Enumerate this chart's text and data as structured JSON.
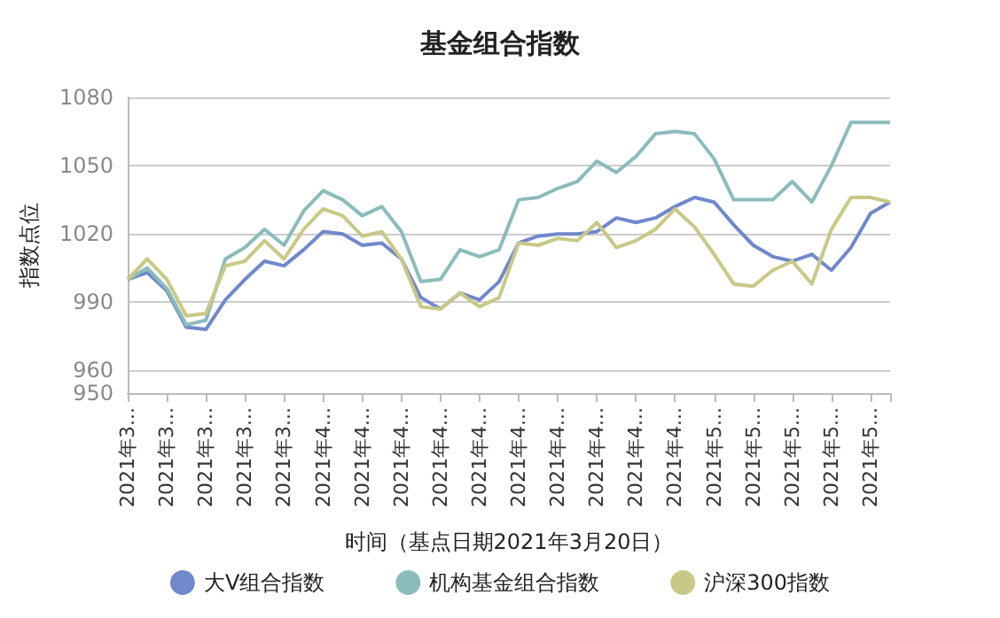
{
  "chart_data": {
    "type": "line",
    "title": "基金组合指数",
    "xlabel": "时间（基点日期2021年3月20日）",
    "ylabel": "指数点位",
    "categories": [
      "2021年3...",
      null,
      "2021年3...",
      null,
      "2021年3...",
      null,
      "2021年3...",
      null,
      "2021年3...",
      null,
      "2021年4...",
      null,
      "2021年4...",
      null,
      "2021年4...",
      null,
      "2021年4...",
      null,
      "2021年4...",
      null,
      "2021年4...",
      null,
      "2021年4...",
      null,
      "2021年4...",
      null,
      "2021年4...",
      null,
      "2021年4...",
      null,
      "2021年5...",
      null,
      "2021年5...",
      null,
      "2021年5...",
      null,
      "2021年5...",
      null,
      "2021年5...",
      null
    ],
    "series": [
      {
        "name": "大V组合指数",
        "color": "#7088cc",
        "values": [
          1000,
          1003,
          995,
          979,
          978,
          991,
          1000,
          1008,
          1006,
          1013,
          1021,
          1020,
          1015,
          1016,
          1009,
          992,
          987,
          994,
          991,
          999,
          1016,
          1019,
          1020,
          1020,
          1021,
          1027,
          1025,
          1027,
          1032,
          1036,
          1034,
          1024,
          1015,
          1010,
          1008,
          1011,
          1004,
          1014,
          1029,
          1034
        ]
      },
      {
        "name": "机构基金组合指数",
        "color": "#8bbcbc",
        "values": [
          1000,
          1005,
          996,
          980,
          982,
          1009,
          1014,
          1022,
          1015,
          1030,
          1039,
          1035,
          1028,
          1032,
          1021,
          999,
          1000,
          1013,
          1010,
          1013,
          1035,
          1036,
          1040,
          1043,
          1052,
          1047,
          1054,
          1064,
          1065,
          1064,
          1053,
          1035,
          1035,
          1035,
          1043,
          1034,
          1050,
          1069,
          1069,
          1069
        ]
      },
      {
        "name": "沪深300指数",
        "color": "#c9c886",
        "values": [
          1000,
          1009,
          1000,
          984,
          985,
          1006,
          1008,
          1017,
          1009,
          1022,
          1031,
          1028,
          1019,
          1021,
          1009,
          988,
          987,
          994,
          988,
          992,
          1016,
          1015,
          1018,
          1017,
          1025,
          1014,
          1017,
          1022,
          1031,
          1023,
          1011,
          998,
          997,
          1004,
          1008,
          998,
          1022,
          1036,
          1036,
          1034
        ]
      }
    ],
    "ylim": [
      950,
      1080
    ],
    "yticks": [
      950,
      960,
      990,
      1020,
      1050,
      1080
    ],
    "grid": "y",
    "legend": "bottom",
    "marker": "none",
    "line_style": "solid"
  }
}
